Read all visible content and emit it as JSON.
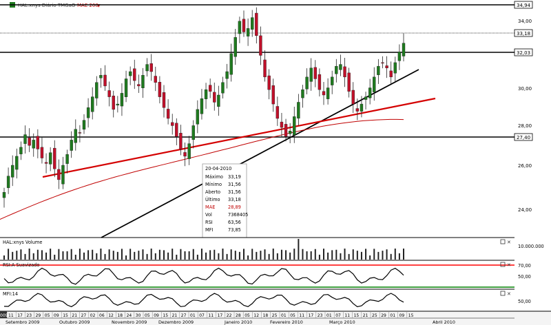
{
  "header": {
    "title": "HAL:xnys Diário TMGaO",
    "mae_label": "MAE 200"
  },
  "colors": {
    "up": "#1f7a1f",
    "down": "#c0102a",
    "mae": "#c00000",
    "trendline_black": "#000000",
    "trendline_red": "#d40000",
    "rsi_high": "#ff0000",
    "rsi_low": "#008000",
    "grid": "#e8e8e8",
    "axis_bg": "#ffffff"
  },
  "icons": {
    "panel_controls": [
      "minimize-icon",
      "close-icon"
    ]
  },
  "info_box": {
    "date": "20-04-2010",
    "rows": [
      {
        "label": "Máximo",
        "value": "33,19"
      },
      {
        "label": "Mínimo",
        "value": "31,56"
      },
      {
        "label": "Aberto",
        "value": "31,56"
      },
      {
        "label": "Último",
        "value": "33,18"
      },
      {
        "label": "MAE",
        "value": "28,89"
      },
      {
        "label": "Vol",
        "value": "7368405"
      },
      {
        "label": "RSI",
        "value": "63,56"
      },
      {
        "label": "MFI",
        "value": "73,85"
      }
    ]
  },
  "panels": {
    "volume_label": "HAL:xnys Volume",
    "rsi_label": "RSI:A Suavizado",
    "mfi_label": "MFI:14"
  },
  "right_axis": {
    "price_ticks": [
      "34,00",
      "32,00",
      "30,00",
      "28,00",
      "26,00",
      "24,00"
    ],
    "price_levels": [
      "34,94",
      "33,18",
      "32,03",
      "27,40"
    ],
    "volume_tick": "10.000.000",
    "rsi_ticks": [
      "70,00",
      "50,00"
    ],
    "mfi_ticks": [
      "50,00"
    ]
  },
  "bottom_axis": {
    "year_stub": "009",
    "day_ticks": [
      "11",
      "17",
      "23",
      "29",
      "05",
      "09",
      "15",
      "21",
      "27",
      "02",
      "06",
      "12",
      "18",
      "24",
      "30",
      "05",
      "09",
      "15",
      "21",
      "27",
      "01",
      "07",
      "11",
      "17",
      "22",
      "28",
      "05",
      "12",
      "18",
      "25",
      "01",
      "05",
      "11",
      "17",
      "23",
      "01",
      "07",
      "11",
      "15",
      "21",
      "25",
      "29",
      "01",
      "09",
      "15"
    ],
    "months": [
      "Setembro 2009",
      "Outubro 2009",
      "Novembro 2009",
      "Dezembro 2009",
      "Janeiro 2010",
      "Fevereiro 2010",
      "Março 2010",
      "Abril 2010"
    ]
  },
  "chart_data": {
    "type": "candlestick",
    "title": "HAL:xnys Diário TMGaO",
    "ylim": [
      22.5,
      35.5
    ],
    "series_mae": {
      "name": "MAE 200",
      "final_value": 28.89
    },
    "horizontal_levels": [
      34.94,
      33.18,
      32.03,
      27.4
    ],
    "ohlc_close_approx": [
      24.9,
      25.8,
      26.4,
      26.9,
      27.4,
      28.1,
      27.5,
      27.8,
      27.3,
      26.8,
      26.5,
      27.1,
      26.2,
      25.6,
      26.4,
      27.0,
      27.8,
      28.4,
      28.2,
      28.9,
      29.6,
      30.2,
      31.0,
      31.4,
      30.8,
      30.2,
      29.5,
      29.8,
      30.4,
      31.2,
      31.6,
      31.1,
      30.8,
      31.4,
      32.0,
      31.6,
      31.0,
      30.2,
      29.6,
      29.0,
      28.6,
      28.0,
      27.3,
      26.9,
      27.6,
      28.6,
      29.5,
      30.1,
      30.6,
      30.5,
      29.9,
      30.3,
      31.0,
      31.6,
      32.6,
      33.5,
      34.4,
      33.8,
      34.0,
      34.6,
      33.6,
      32.5,
      31.3,
      30.6,
      29.8,
      29.0,
      28.5,
      28.0,
      28.3,
      29.1,
      29.9,
      30.6,
      31.3,
      31.8,
      31.2,
      30.6,
      30.3,
      30.7,
      31.3,
      31.9,
      32.0,
      31.3,
      30.5,
      29.8,
      29.4,
      29.8,
      30.2,
      30.7,
      31.3,
      31.9,
      32.1,
      31.8,
      31.3,
      32.1,
      32.7,
      33.18
    ]
  }
}
